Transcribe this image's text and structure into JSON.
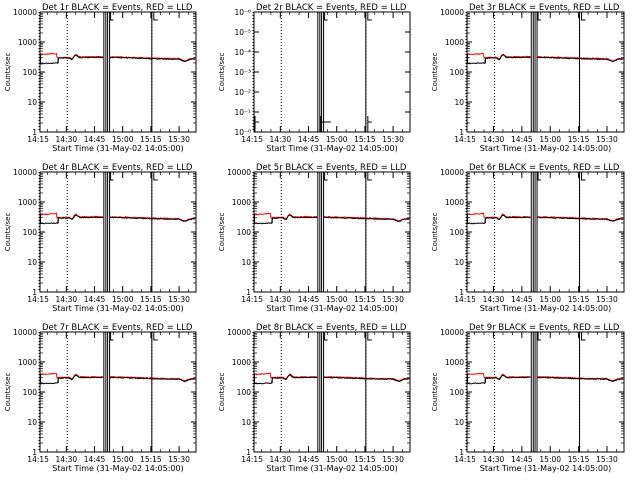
{
  "chart_data": [
    {
      "type": "line",
      "title": "Det 1r BLACK = Events, RED = LLD",
      "xlabel": "Start Time (31-May-02 14:05:00)",
      "ylabel": "Counts/sec",
      "scale": "log",
      "yticks": [
        "1",
        "10",
        "100",
        "1000",
        "10000"
      ],
      "xticks": [
        "14:15",
        "14:30",
        "14:45",
        "15:00",
        "15:15",
        "15:30"
      ],
      "colors": {
        "events": "#000000",
        "lld": "#ff0000"
      },
      "data_present": true
    },
    {
      "type": "line",
      "title": "Det 2r BLACK = Events, RED = LLD",
      "xlabel": "Start Time (31-May-02 14:05:00)",
      "ylabel": "Counts/sec",
      "scale": "log",
      "yticks": [
        "10⁻⁰",
        "10⁻¹",
        "10⁻²",
        "10⁻³",
        "10⁻⁴",
        "10⁻⁵",
        "10⁻⁶"
      ],
      "xticks": [
        "14:15",
        "14:30",
        "14:45",
        "15:00",
        "15:15",
        "15:30"
      ],
      "colors": {
        "events": "#000000",
        "lld": "#ff0000"
      },
      "data_present": false
    },
    {
      "type": "line",
      "title": "Det 3r BLACK = Events, RED = LLD",
      "xlabel": "Start Time (31-May-02 14:05:00)",
      "ylabel": "Counts/sec",
      "scale": "log",
      "yticks": [
        "1",
        "10",
        "100",
        "1000",
        "10000"
      ],
      "xticks": [
        "14:15",
        "14:30",
        "14:45",
        "15:00",
        "15:15",
        "15:30"
      ],
      "colors": {
        "events": "#000000",
        "lld": "#ff0000"
      },
      "data_present": true
    },
    {
      "type": "line",
      "title": "Det 4r BLACK = Events, RED = LLD",
      "xlabel": "Start Time (31-May-02 14:05:00)",
      "ylabel": "Counts/sec",
      "scale": "log",
      "yticks": [
        "1",
        "10",
        "100",
        "1000",
        "10000"
      ],
      "xticks": [
        "14:15",
        "14:30",
        "14:45",
        "15:00",
        "15:15",
        "15:30"
      ],
      "colors": {
        "events": "#000000",
        "lld": "#ff0000"
      },
      "data_present": true
    },
    {
      "type": "line",
      "title": "Det 5r BLACK = Events, RED = LLD",
      "xlabel": "Start Time (31-May-02 14:05:00)",
      "ylabel": "Counts/sec",
      "scale": "log",
      "yticks": [
        "1",
        "10",
        "100",
        "1000",
        "10000"
      ],
      "xticks": [
        "14:15",
        "14:30",
        "14:45",
        "15:00",
        "15:15",
        "15:30"
      ],
      "colors": {
        "events": "#000000",
        "lld": "#ff0000"
      },
      "data_present": true
    },
    {
      "type": "line",
      "title": "Det 6r BLACK = Events, RED = LLD",
      "xlabel": "Start Time (31-May-02 14:05:00)",
      "ylabel": "Counts/sec",
      "scale": "log",
      "yticks": [
        "1",
        "10",
        "100",
        "1000",
        "10000"
      ],
      "xticks": [
        "14:15",
        "14:30",
        "14:45",
        "15:00",
        "15:15",
        "15:30"
      ],
      "colors": {
        "events": "#000000",
        "lld": "#ff0000"
      },
      "data_present": true
    },
    {
      "type": "line",
      "title": "Det 7r BLACK = Events, RED = LLD",
      "xlabel": "Start Time (31-May-02 14:05:00)",
      "ylabel": "Counts/sec",
      "scale": "log",
      "yticks": [
        "1",
        "10",
        "100",
        "1000",
        "10000"
      ],
      "xticks": [
        "14:15",
        "14:30",
        "14:45",
        "15:00",
        "15:15",
        "15:30"
      ],
      "colors": {
        "events": "#000000",
        "lld": "#ff0000"
      },
      "data_present": true
    },
    {
      "type": "line",
      "title": "Det 8r BLACK = Events, RED = LLD",
      "xlabel": "Start Time (31-May-02 14:05:00)",
      "ylabel": "Counts/sec",
      "scale": "log",
      "yticks": [
        "1",
        "10",
        "100",
        "1000",
        "10000"
      ],
      "xticks": [
        "14:15",
        "14:30",
        "14:45",
        "15:00",
        "15:15",
        "15:30"
      ],
      "colors": {
        "events": "#000000",
        "lld": "#ff0000"
      },
      "data_present": true
    },
    {
      "type": "line",
      "title": "Det 9r BLACK = Events, RED = LLD",
      "xlabel": "Start Time (31-May-02 14:05:00)",
      "ylabel": "Counts/sec",
      "scale": "log",
      "yticks": [
        "1",
        "10",
        "100",
        "1000",
        "10000"
      ],
      "xticks": [
        "14:15",
        "14:30",
        "14:45",
        "15:00",
        "15:15",
        "15:30"
      ],
      "colors": {
        "events": "#000000",
        "lld": "#ff0000"
      },
      "data_present": true
    }
  ]
}
